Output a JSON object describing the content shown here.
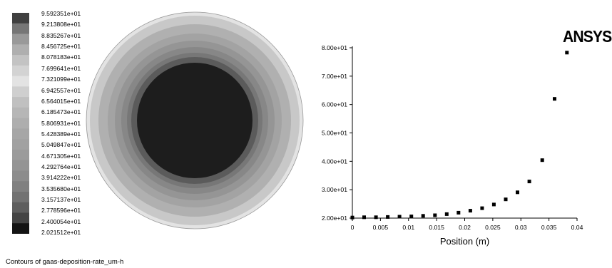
{
  "caption": "Contours of gaas-deposition-rate_um-h",
  "logo": "ANSYS",
  "legend": {
    "levels": [
      "9.592351e+01",
      "9.213808e+01",
      "8.835267e+01",
      "8.456725e+01",
      "8.078183e+01",
      "7.699641e+01",
      "7.321099e+01",
      "6.942557e+01",
      "6.564015e+01",
      "6.185473e+01",
      "5.806931e+01",
      "5.428389e+01",
      "5.049847e+01",
      "4.671305e+01",
      "4.292764e+01",
      "3.914222e+01",
      "3.535680e+01",
      "3.157137e+01",
      "2.778596e+01",
      "2.400054e+01",
      "2.021512e+01"
    ],
    "swatch_colors": [
      "#404040",
      "#767676",
      "#999999",
      "#afafaf",
      "#c3c3c3",
      "#d3d3d3",
      "#e3e3e3",
      "#cfcfcf",
      "#c0c0c0",
      "#b6b6b6",
      "#aeaeae",
      "#a6a6a6",
      "#a1a1a1",
      "#9b9b9b",
      "#949494",
      "#8c8c8c",
      "#808080",
      "#727272",
      "#5e5e5e",
      "#444444",
      "#141414"
    ]
  },
  "chart_data": {
    "type": "scatter",
    "xlabel": "Position (m)",
    "ylabel": "",
    "xlim": [
      0,
      0.04
    ],
    "ylim": [
      20,
      80
    ],
    "xticks": [
      "0",
      "0.005",
      "0.01",
      "0.015",
      "0.02",
      "0.025",
      "0.03",
      "0.035",
      "0.04"
    ],
    "yticks": [
      "2.00e+01",
      "3.00e+01",
      "4.00e+01",
      "5.00e+01",
      "6.00e+01",
      "7.00e+01",
      "8.00e+01"
    ],
    "grid": false,
    "series": [
      {
        "x": [
          0,
          0.0021,
          0.0042,
          0.0063,
          0.0084,
          0.0105,
          0.0126,
          0.0147,
          0.0168,
          0.0189,
          0.021,
          0.0231,
          0.0252,
          0.0273,
          0.0294,
          0.0315,
          0.0338,
          0.036,
          0.0382
        ],
        "values": [
          20.2,
          20.3,
          20.3,
          20.4,
          20.5,
          20.6,
          20.8,
          21.0,
          21.4,
          21.9,
          22.6,
          23.5,
          24.8,
          26.6,
          29.1,
          32.9,
          40.4,
          62.0,
          78.3
        ]
      }
    ]
  },
  "contour": {
    "ring_colors": [
      "#e3e3e3",
      "#c8c8c8",
      "#b0b0b0",
      "#a3a3a3",
      "#959595",
      "#878787",
      "#777777",
      "#5b5b5b",
      "#1d1d1d"
    ]
  }
}
